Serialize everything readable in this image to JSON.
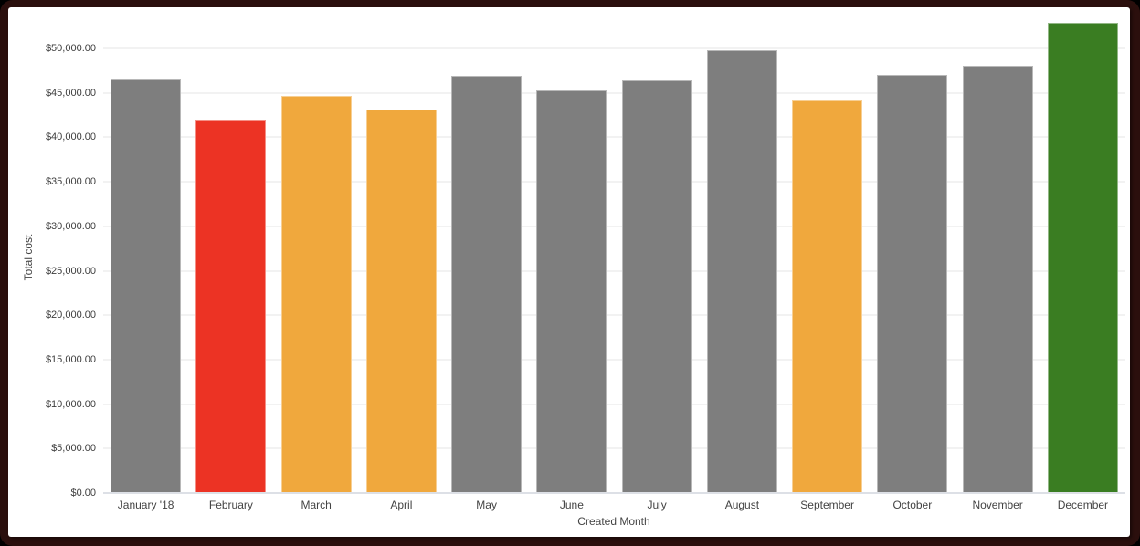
{
  "colors": {
    "frame_background": "#2B0F0D",
    "page_background": "#000000",
    "card_background": "#FFFFFF",
    "gridline": "#F2F2F2",
    "axis_line": "#DDE0E6",
    "bar_gray": "#7E7E7E",
    "bar_red": "#EC3324",
    "bar_orange": "#F0A83D",
    "bar_green": "#3A7D22",
    "tick_text": "#3D3D3D",
    "axis_title_text": "#444444"
  },
  "chart_data": {
    "type": "bar",
    "title": "",
    "xlabel": "Created Month",
    "ylabel": "Total cost",
    "categories": [
      "January '18",
      "February",
      "March",
      "April",
      "May",
      "June",
      "July",
      "August",
      "September",
      "October",
      "November",
      "December"
    ],
    "values": [
      46500,
      42000,
      44700,
      43100,
      46900,
      45300,
      46400,
      49800,
      44100,
      47000,
      48000,
      52900
    ],
    "bar_colors": [
      "#7E7E7E",
      "#EC3324",
      "#F0A83D",
      "#F0A83D",
      "#7E7E7E",
      "#7E7E7E",
      "#7E7E7E",
      "#7E7E7E",
      "#F0A83D",
      "#7E7E7E",
      "#7E7E7E",
      "#3A7D22"
    ],
    "y_ticks": [
      "$0.00",
      "$5,000.00",
      "$10,000.00",
      "$15,000.00",
      "$20,000.00",
      "$25,000.00",
      "$30,000.00",
      "$35,000.00",
      "$40,000.00",
      "$45,000.00",
      "$50,000.00"
    ],
    "y_tick_values": [
      0,
      5000,
      10000,
      15000,
      20000,
      25000,
      30000,
      35000,
      40000,
      45000,
      50000
    ],
    "ylim": [
      0,
      53000
    ],
    "grid": true,
    "legend": "none"
  }
}
